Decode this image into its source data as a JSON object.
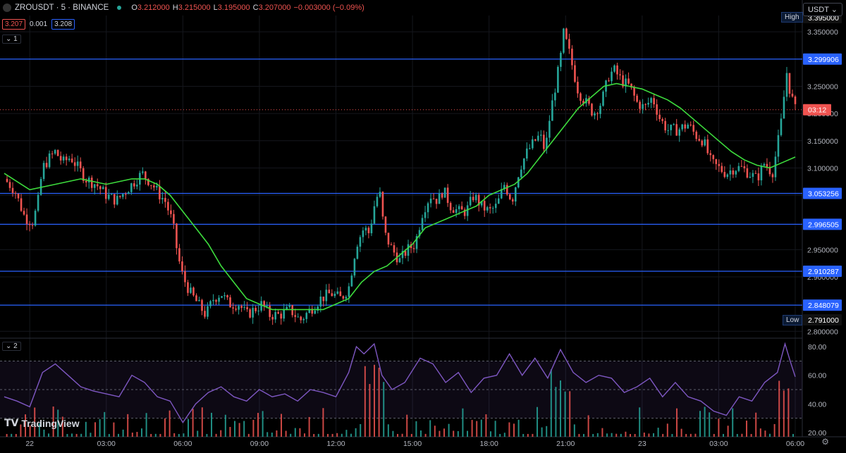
{
  "header": {
    "symbol": "ZROUSDT · 5 · BINANCE",
    "open_label": "O",
    "open": "3.212000",
    "high_label": "H",
    "high": "3.215000",
    "low_label": "L",
    "low": "3.195000",
    "close_label": "C",
    "close": "3.207000",
    "change": "−0.003000 (−0.09%)",
    "bid": "3.207",
    "spread": "0.001",
    "ask": "3.208",
    "pane1_tag": "1",
    "pane2_tag": "2",
    "currency": "USDT",
    "high_tag": "High",
    "low_tag": "Low",
    "brand": "TradingView",
    "countdown": "03:12"
  },
  "colors": {
    "up": "#26a69a",
    "down": "#ef5350",
    "ma": "#3ddc3d",
    "level": "#2962ff",
    "rsi": "#7e57c2",
    "background": "#000000"
  },
  "chart_data": [
    {
      "type": "candlestick",
      "title": "",
      "interval": "5",
      "y_ticks": [
        "3.350000",
        "3.250000",
        "3.200000",
        "3.150000",
        "3.100000",
        "3.050000",
        "2.950000",
        "2.900000",
        "2.800000"
      ],
      "ylim": [
        2.79,
        3.38
      ],
      "x_ticks": [
        "22",
        "03:00",
        "06:00",
        "09:00",
        "12:00",
        "15:00",
        "18:00",
        "21:00",
        "23",
        "03:00",
        "06:00"
      ],
      "x_range_hours": [
        0,
        31
      ],
      "price_levels": [
        "3.299906",
        "3.053256",
        "2.996505",
        "2.910287",
        "2.848079"
      ],
      "session_high": "3.395000",
      "session_low": "2.791000",
      "last_price": 3.207,
      "close_path": [
        [
          0.0,
          3.08
        ],
        [
          0.4,
          3.06
        ],
        [
          0.8,
          3.01
        ],
        [
          1.1,
          3.0
        ],
        [
          1.3,
          3.03
        ],
        [
          1.5,
          3.1
        ],
        [
          1.8,
          3.12
        ],
        [
          2.0,
          3.13
        ],
        [
          2.3,
          3.11
        ],
        [
          2.6,
          3.12
        ],
        [
          2.9,
          3.1
        ],
        [
          3.2,
          3.08
        ],
        [
          3.6,
          3.07
        ],
        [
          4.0,
          3.05
        ],
        [
          4.4,
          3.04
        ],
        [
          4.8,
          3.06
        ],
        [
          5.2,
          3.08
        ],
        [
          5.4,
          3.09
        ],
        [
          5.8,
          3.07
        ],
        [
          6.1,
          3.05
        ],
        [
          6.3,
          3.04
        ],
        [
          6.6,
          3.0
        ],
        [
          6.8,
          2.94
        ],
        [
          7.0,
          2.9
        ],
        [
          7.3,
          2.87
        ],
        [
          7.6,
          2.85
        ],
        [
          7.9,
          2.83
        ],
        [
          8.2,
          2.86
        ],
        [
          8.5,
          2.87
        ],
        [
          8.8,
          2.85
        ],
        [
          9.2,
          2.85
        ],
        [
          9.5,
          2.83
        ],
        [
          9.8,
          2.84
        ],
        [
          10.1,
          2.85
        ],
        [
          10.4,
          2.83
        ],
        [
          10.8,
          2.83
        ],
        [
          11.2,
          2.84
        ],
        [
          11.6,
          2.82
        ],
        [
          12.0,
          2.84
        ],
        [
          12.4,
          2.86
        ],
        [
          12.8,
          2.87
        ],
        [
          13.2,
          2.86
        ],
        [
          13.5,
          2.88
        ],
        [
          13.8,
          2.96
        ],
        [
          14.1,
          2.99
        ],
        [
          14.3,
          2.98
        ],
        [
          14.5,
          3.03
        ],
        [
          14.7,
          3.06
        ],
        [
          14.9,
          2.98
        ],
        [
          15.2,
          2.95
        ],
        [
          15.5,
          2.93
        ],
        [
          15.8,
          2.95
        ],
        [
          16.1,
          2.96
        ],
        [
          16.4,
          3.02
        ],
        [
          16.7,
          3.05
        ],
        [
          17.0,
          3.04
        ],
        [
          17.2,
          3.06
        ],
        [
          17.5,
          3.03
        ],
        [
          17.8,
          3.02
        ],
        [
          18.1,
          3.02
        ],
        [
          18.4,
          3.05
        ],
        [
          18.7,
          3.03
        ],
        [
          19.0,
          3.02
        ],
        [
          19.3,
          3.03
        ],
        [
          19.6,
          3.07
        ],
        [
          19.9,
          3.04
        ],
        [
          20.2,
          3.1
        ],
        [
          20.5,
          3.13
        ],
        [
          20.8,
          3.15
        ],
        [
          21.0,
          3.16
        ],
        [
          21.2,
          3.13
        ],
        [
          21.4,
          3.2
        ],
        [
          21.6,
          3.25
        ],
        [
          21.8,
          3.3
        ],
        [
          21.9,
          3.35
        ],
        [
          22.1,
          3.32
        ],
        [
          22.3,
          3.28
        ],
        [
          22.5,
          3.24
        ],
        [
          22.8,
          3.22
        ],
        [
          23.1,
          3.2
        ],
        [
          23.4,
          3.22
        ],
        [
          23.7,
          3.27
        ],
        [
          23.9,
          3.28
        ],
        [
          24.2,
          3.26
        ],
        [
          24.5,
          3.25
        ],
        [
          24.8,
          3.22
        ],
        [
          25.1,
          3.21
        ],
        [
          25.4,
          3.23
        ],
        [
          25.7,
          3.19
        ],
        [
          26.0,
          3.17
        ],
        [
          26.4,
          3.17
        ],
        [
          26.8,
          3.18
        ],
        [
          27.1,
          3.16
        ],
        [
          27.4,
          3.15
        ],
        [
          27.7,
          3.11
        ],
        [
          28.0,
          3.1
        ],
        [
          28.3,
          3.09
        ],
        [
          28.6,
          3.1
        ],
        [
          28.9,
          3.1
        ],
        [
          29.2,
          3.09
        ],
        [
          29.5,
          3.08
        ],
        [
          29.8,
          3.11
        ],
        [
          30.1,
          3.09
        ],
        [
          30.3,
          3.14
        ],
        [
          30.5,
          3.2
        ],
        [
          30.65,
          3.28
        ],
        [
          30.8,
          3.24
        ],
        [
          31.0,
          3.207
        ]
      ],
      "ma_path": [
        [
          0.0,
          3.09
        ],
        [
          1.0,
          3.06
        ],
        [
          2.0,
          3.07
        ],
        [
          3.0,
          3.08
        ],
        [
          4.0,
          3.07
        ],
        [
          5.0,
          3.08
        ],
        [
          5.5,
          3.08
        ],
        [
          6.0,
          3.07
        ],
        [
          6.5,
          3.05
        ],
        [
          7.0,
          3.02
        ],
        [
          7.5,
          2.99
        ],
        [
          8.0,
          2.96
        ],
        [
          8.5,
          2.92
        ],
        [
          9.0,
          2.89
        ],
        [
          9.5,
          2.86
        ],
        [
          10.0,
          2.85
        ],
        [
          10.5,
          2.84
        ],
        [
          11.0,
          2.84
        ],
        [
          11.5,
          2.84
        ],
        [
          12.0,
          2.84
        ],
        [
          12.5,
          2.84
        ],
        [
          13.0,
          2.85
        ],
        [
          13.5,
          2.86
        ],
        [
          14.0,
          2.89
        ],
        [
          14.5,
          2.91
        ],
        [
          15.0,
          2.92
        ],
        [
          15.5,
          2.94
        ],
        [
          16.0,
          2.96
        ],
        [
          16.5,
          2.99
        ],
        [
          17.0,
          3.0
        ],
        [
          17.5,
          3.01
        ],
        [
          18.0,
          3.02
        ],
        [
          18.5,
          3.03
        ],
        [
          19.0,
          3.05
        ],
        [
          19.5,
          3.06
        ],
        [
          20.0,
          3.07
        ],
        [
          20.5,
          3.09
        ],
        [
          21.0,
          3.12
        ],
        [
          21.5,
          3.15
        ],
        [
          22.0,
          3.18
        ],
        [
          22.5,
          3.21
        ],
        [
          23.0,
          3.23
        ],
        [
          23.5,
          3.25
        ],
        [
          24.0,
          3.255
        ],
        [
          24.5,
          3.25
        ],
        [
          25.0,
          3.245
        ],
        [
          25.5,
          3.235
        ],
        [
          26.0,
          3.225
        ],
        [
          26.5,
          3.21
        ],
        [
          27.0,
          3.19
        ],
        [
          27.5,
          3.17
        ],
        [
          28.0,
          3.15
        ],
        [
          28.5,
          3.13
        ],
        [
          29.0,
          3.115
        ],
        [
          29.5,
          3.105
        ],
        [
          30.0,
          3.1
        ],
        [
          30.5,
          3.11
        ],
        [
          31.0,
          3.12
        ]
      ]
    },
    {
      "type": "line",
      "title": "",
      "y_ticks": [
        "80.00",
        "60.00",
        "40.00",
        "20.00"
      ],
      "ylim": [
        17,
        85
      ],
      "band": [
        30,
        70
      ],
      "midline": 50,
      "x_range_hours": [
        0,
        31
      ],
      "series": [
        {
          "values": [
            [
              0.0,
              45
            ],
            [
              0.5,
              42
            ],
            [
              1.0,
              38
            ],
            [
              1.5,
              62
            ],
            [
              2.0,
              68
            ],
            [
              2.5,
              60
            ],
            [
              3.0,
              52
            ],
            [
              3.5,
              49
            ],
            [
              4.0,
              47
            ],
            [
              4.5,
              45
            ],
            [
              5.0,
              60
            ],
            [
              5.5,
              55
            ],
            [
              6.0,
              45
            ],
            [
              6.5,
              42
            ],
            [
              7.0,
              27
            ],
            [
              7.5,
              40
            ],
            [
              8.0,
              48
            ],
            [
              8.5,
              52
            ],
            [
              9.0,
              45
            ],
            [
              9.5,
              42
            ],
            [
              10.0,
              50
            ],
            [
              10.5,
              45
            ],
            [
              11.0,
              47
            ],
            [
              11.5,
              42
            ],
            [
              12.0,
              50
            ],
            [
              12.5,
              48
            ],
            [
              13.0,
              45
            ],
            [
              13.5,
              62
            ],
            [
              13.8,
              80
            ],
            [
              14.1,
              75
            ],
            [
              14.5,
              82
            ],
            [
              14.8,
              60
            ],
            [
              15.2,
              50
            ],
            [
              15.7,
              55
            ],
            [
              16.3,
              72
            ],
            [
              16.8,
              68
            ],
            [
              17.3,
              55
            ],
            [
              17.8,
              62
            ],
            [
              18.3,
              48
            ],
            [
              18.8,
              58
            ],
            [
              19.3,
              60
            ],
            [
              19.8,
              75
            ],
            [
              20.3,
              60
            ],
            [
              20.8,
              72
            ],
            [
              21.3,
              58
            ],
            [
              21.8,
              78
            ],
            [
              22.3,
              62
            ],
            [
              22.8,
              55
            ],
            [
              23.3,
              60
            ],
            [
              23.8,
              58
            ],
            [
              24.3,
              48
            ],
            [
              24.8,
              52
            ],
            [
              25.3,
              58
            ],
            [
              25.8,
              45
            ],
            [
              26.3,
              55
            ],
            [
              26.8,
              45
            ],
            [
              27.3,
              42
            ],
            [
              27.8,
              35
            ],
            [
              28.3,
              32
            ],
            [
              28.8,
              45
            ],
            [
              29.3,
              42
            ],
            [
              29.8,
              55
            ],
            [
              30.3,
              62
            ],
            [
              30.6,
              82
            ],
            [
              30.8,
              70
            ],
            [
              31.0,
              59
            ]
          ]
        }
      ]
    }
  ]
}
